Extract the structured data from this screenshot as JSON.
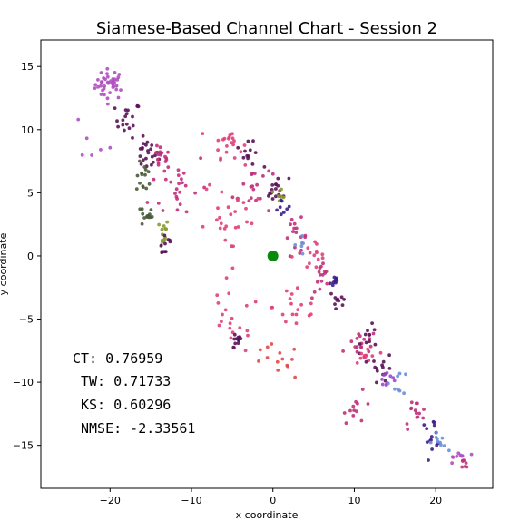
{
  "chart_data": {
    "type": "scatter",
    "title": "Siamese-Based Channel Chart - Session 2",
    "xlabel": "x coordinate",
    "ylabel": "y coordinate",
    "xlim": [
      -28.5,
      27
    ],
    "ylim": [
      -18.4,
      17.1
    ],
    "x_ticks": [
      -20,
      -10,
      0,
      10,
      20
    ],
    "y_ticks": [
      -15,
      -10,
      -5,
      0,
      5,
      10,
      15
    ],
    "x_tick_labels": [
      "−20",
      "−10",
      "0",
      "10",
      "20"
    ],
    "y_tick_labels": [
      "−15",
      "−10",
      "−5",
      "0",
      "5",
      "10",
      "15"
    ],
    "grid": false,
    "legend": "none",
    "colors": {
      "purple": "#b04fc0",
      "magenta": "#c0307a",
      "pink": "#e0407a",
      "dark_purple": "#5a1258",
      "indigo": "#3b1f8a",
      "blue": "#6b8fd8",
      "olive": "#8a9a30",
      "dark_olive": "#4a5a3a",
      "red": "#e04a4a",
      "violet": "#9a4ad0",
      "highlight": "#0a8a0a"
    },
    "highlight_point": {
      "x": 0,
      "y": 0,
      "color": "#0a8a0a"
    },
    "metrics": [
      "CT: 0.76959",
      "TW: 0.71733",
      "KS: 0.60296",
      "NMSE: -2.33561"
    ],
    "clusters": [
      {
        "cx": -20,
        "cy": 13.6,
        "sx": 1.5,
        "sy": 1.0,
        "n": 40,
        "color": "purple"
      },
      {
        "cx": -17.8,
        "cy": 10.8,
        "sx": 1.3,
        "sy": 1.2,
        "n": 18,
        "color": "dark_purple"
      },
      {
        "cx": -15.5,
        "cy": 8.0,
        "sx": 1.2,
        "sy": 1.0,
        "n": 22,
        "color": "dark_purple"
      },
      {
        "cx": -13.8,
        "cy": 7.8,
        "sx": 1.0,
        "sy": 0.8,
        "n": 16,
        "color": "magenta"
      },
      {
        "cx": -15.8,
        "cy": 6.2,
        "sx": 0.8,
        "sy": 1.0,
        "n": 14,
        "color": "dark_olive"
      },
      {
        "cx": -15.5,
        "cy": 3.2,
        "sx": 0.6,
        "sy": 0.8,
        "n": 14,
        "color": "dark_olive"
      },
      {
        "cx": -13.8,
        "cy": 1.8,
        "sx": 0.9,
        "sy": 1.0,
        "n": 14,
        "color": "olive"
      },
      {
        "cx": -13.2,
        "cy": 1.0,
        "sx": 0.8,
        "sy": 1.0,
        "n": 10,
        "color": "dark_purple"
      },
      {
        "cx": -11.5,
        "cy": 5.5,
        "sx": 3.0,
        "sy": 2.5,
        "n": 26,
        "color": "magenta"
      },
      {
        "cx": -5.5,
        "cy": 9.0,
        "sx": 1.5,
        "sy": 1.0,
        "n": 20,
        "color": "pink"
      },
      {
        "cx": -3.0,
        "cy": 8.0,
        "sx": 1.2,
        "sy": 0.8,
        "n": 12,
        "color": "dark_purple"
      },
      {
        "cx": -2.5,
        "cy": 5.5,
        "sx": 2.0,
        "sy": 2.0,
        "n": 20,
        "color": "magenta"
      },
      {
        "cx": 0.5,
        "cy": 5.2,
        "sx": 1.2,
        "sy": 0.9,
        "n": 16,
        "color": "dark_purple"
      },
      {
        "cx": 1.0,
        "cy": 5.0,
        "sx": 0.6,
        "sy": 0.5,
        "n": 6,
        "color": "olive"
      },
      {
        "cx": 1.2,
        "cy": 3.8,
        "sx": 0.8,
        "sy": 0.6,
        "n": 8,
        "color": "indigo"
      },
      {
        "cx": -5.0,
        "cy": 3.0,
        "sx": 3.0,
        "sy": 3.0,
        "n": 30,
        "color": "pink"
      },
      {
        "cx": 2.8,
        "cy": 1.5,
        "sx": 1.2,
        "sy": 1.2,
        "n": 16,
        "color": "magenta"
      },
      {
        "cx": 3.5,
        "cy": 1.0,
        "sx": 0.8,
        "sy": 0.8,
        "n": 6,
        "color": "blue"
      },
      {
        "cx": 5.0,
        "cy": 0.0,
        "sx": 1.0,
        "sy": 0.8,
        "n": 14,
        "color": "pink"
      },
      {
        "cx": 6.0,
        "cy": -2.0,
        "sx": 1.0,
        "sy": 1.2,
        "n": 14,
        "color": "magenta"
      },
      {
        "cx": 7.5,
        "cy": -2.0,
        "sx": 0.5,
        "sy": 0.5,
        "n": 10,
        "color": "indigo"
      },
      {
        "cx": 8.0,
        "cy": -3.5,
        "sx": 1.0,
        "sy": 1.0,
        "n": 10,
        "color": "dark_purple"
      },
      {
        "cx": 3.0,
        "cy": -4.0,
        "sx": 2.5,
        "sy": 2.0,
        "n": 18,
        "color": "pink"
      },
      {
        "cx": -5.0,
        "cy": -5.5,
        "sx": 3.0,
        "sy": 2.0,
        "n": 18,
        "color": "pink"
      },
      {
        "cx": -4.5,
        "cy": -6.8,
        "sx": 0.6,
        "sy": 0.5,
        "n": 12,
        "color": "dark_purple"
      },
      {
        "cx": 0.5,
        "cy": -8.5,
        "sx": 2.5,
        "sy": 1.2,
        "n": 14,
        "color": "red"
      },
      {
        "cx": 11.0,
        "cy": -7.0,
        "sx": 1.5,
        "sy": 1.0,
        "n": 18,
        "color": "magenta"
      },
      {
        "cx": 12.0,
        "cy": -6.5,
        "sx": 1.0,
        "sy": 0.8,
        "n": 10,
        "color": "dark_purple"
      },
      {
        "cx": 11.5,
        "cy": -8.0,
        "sx": 1.2,
        "sy": 0.8,
        "n": 10,
        "color": "pink"
      },
      {
        "cx": 13.5,
        "cy": -9.0,
        "sx": 1.2,
        "sy": 1.0,
        "n": 14,
        "color": "dark_purple"
      },
      {
        "cx": 14.0,
        "cy": -9.5,
        "sx": 1.0,
        "sy": 0.8,
        "n": 10,
        "color": "violet"
      },
      {
        "cx": 15.5,
        "cy": -10.0,
        "sx": 1.0,
        "sy": 0.8,
        "n": 8,
        "color": "blue"
      },
      {
        "cx": 10.5,
        "cy": -12.0,
        "sx": 1.5,
        "sy": 1.0,
        "n": 12,
        "color": "magenta"
      },
      {
        "cx": 17.5,
        "cy": -12.5,
        "sx": 1.2,
        "sy": 1.0,
        "n": 14,
        "color": "magenta"
      },
      {
        "cx": 19.5,
        "cy": -14.0,
        "sx": 1.2,
        "sy": 0.9,
        "n": 14,
        "color": "indigo"
      },
      {
        "cx": 20.5,
        "cy": -14.8,
        "sx": 0.8,
        "sy": 0.6,
        "n": 10,
        "color": "blue"
      },
      {
        "cx": 22.5,
        "cy": -16.0,
        "sx": 1.0,
        "sy": 0.6,
        "n": 10,
        "color": "purple"
      },
      {
        "cx": 23.5,
        "cy": -16.6,
        "sx": 0.6,
        "sy": 0.4,
        "n": 6,
        "color": "magenta"
      },
      {
        "cx": -22.0,
        "cy": 9.5,
        "sx": 2.0,
        "sy": 1.5,
        "n": 6,
        "color": "purple"
      }
    ]
  }
}
